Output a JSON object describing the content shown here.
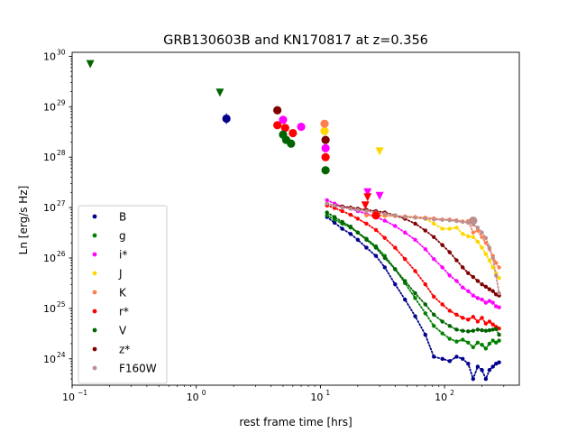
{
  "chart_data": {
    "type": "scatter",
    "title": "GRB130603B and KN170817 at z=0.356",
    "xlabel": "rest frame time [hrs]",
    "ylabel": "Ln [erg/s Hz]",
    "xscale": "log",
    "yscale": "log",
    "xlim": [
      0.1,
      400
    ],
    "ylim": [
      3e+23,
      1.2e+30
    ],
    "x_ticks": [
      {
        "value": 0.1,
        "label": "10",
        "exp": "−1"
      },
      {
        "value": 1,
        "label": "10",
        "exp": "0"
      },
      {
        "value": 10,
        "label": "10",
        "exp": "1"
      },
      {
        "value": 100,
        "label": "10",
        "exp": "2"
      }
    ],
    "y_ticks": [
      {
        "value": 1e+24,
        "label": "10",
        "exp": "24"
      },
      {
        "value": 1e+25,
        "label": "10",
        "exp": "25"
      },
      {
        "value": 1e+26,
        "label": "10",
        "exp": "26"
      },
      {
        "value": 1e+27,
        "label": "10",
        "exp": "27"
      },
      {
        "value": 1e+28,
        "label": "10",
        "exp": "28"
      },
      {
        "value": 1e+29,
        "label": "10",
        "exp": "29"
      },
      {
        "value": 1e+30,
        "label": "10",
        "exp": "30"
      }
    ],
    "grid": false,
    "legend_position": "lower-left",
    "series": [
      {
        "name": "B",
        "color": "#00008b",
        "model": {
          "x": [
            11.3,
            13,
            15,
            17.5,
            20,
            23.5,
            28,
            33,
            40,
            48,
            58,
            70,
            82,
            96,
            110,
            125,
            140,
            155,
            170,
            185,
            200,
            215,
            230,
            245,
            260,
            275
          ],
          "y": [
            6.5e+26,
            5e+26,
            3.8e+26,
            3e+26,
            2.3e+26,
            1.6e+26,
            1.1e+26,
            6.5e+25,
            3e+25,
            1.5e+25,
            7e+24,
            3e+24,
            1.1e+24,
            1e+24,
            9e+23,
            1.1e+24,
            1e+24,
            8e+23,
            4e+23,
            7e+23,
            6e+23,
            4e+23,
            6e+23,
            7e+23,
            8e+23,
            8.5e+23
          ]
        },
        "obs": [
          {
            "x": 1.75,
            "y": 5.8e+28,
            "type": "point",
            "err": 1.8
          }
        ]
      },
      {
        "name": "g",
        "color": "#008000",
        "model": {
          "x": [
            11.3,
            13,
            15,
            17.5,
            20,
            23.5,
            28,
            33,
            40,
            48,
            58,
            70,
            82,
            96,
            110,
            125,
            140,
            155,
            170,
            185,
            200,
            215,
            230,
            245,
            260,
            275
          ],
          "y": [
            7e+26,
            5.8e+26,
            4.8e+26,
            4e+26,
            3.2e+26,
            2.4e+26,
            1.7e+26,
            1.1e+26,
            6e+25,
            3.2e+25,
            1.6e+25,
            8e+24,
            4.5e+24,
            3.2e+24,
            2.5e+24,
            2.2e+24,
            2.4e+24,
            2.1e+24,
            1.7e+24,
            2.1e+24,
            1.9e+24,
            1.6e+24,
            2e+24,
            2.3e+24,
            2.1e+24,
            2.3e+24
          ]
        },
        "obs": []
      },
      {
        "name": "i*",
        "color": "#ff00ff",
        "model": {
          "x": [
            11.3,
            13,
            15,
            17.5,
            20,
            23.5,
            28,
            33,
            40,
            48,
            58,
            70,
            82,
            96,
            110,
            125,
            140,
            155,
            170,
            185,
            200,
            215,
            230,
            245,
            260,
            275
          ],
          "y": [
            1.4e+27,
            1.2e+27,
            1.05e+27,
            9.5e+26,
            8.5e+26,
            7.5e+26,
            6.5e+26,
            5.5e+26,
            4.3e+26,
            3.2e+26,
            2.3e+26,
            1.5e+26,
            9.5e+25,
            6.5e+25,
            4.5e+25,
            3.5e+25,
            2.6e+25,
            2.2e+25,
            1.8e+25,
            1.6e+25,
            1.5e+25,
            1.3e+25,
            1.4e+25,
            1.3e+25,
            1.1e+25,
            1.05e+25
          ]
        },
        "obs": [
          {
            "x": 5.0,
            "y": 5.5e+28,
            "type": "point"
          },
          {
            "x": 7.0,
            "y": 4e+28,
            "type": "point"
          },
          {
            "x": 11.0,
            "y": 1.5e+28,
            "type": "point"
          },
          {
            "x": 24.0,
            "y": 2e+27,
            "type": "upper"
          },
          {
            "x": 30.0,
            "y": 1.7e+27,
            "type": "upper"
          }
        ]
      },
      {
        "name": "J",
        "color": "#ffd700",
        "model": {
          "x": [
            23.5,
            28,
            33,
            40,
            48,
            58,
            70,
            82,
            96,
            110,
            125,
            140,
            155,
            170,
            185,
            200,
            215,
            230,
            245,
            260,
            275
          ],
          "y": [
            7e+26,
            7e+26,
            6.8e+26,
            6.8e+26,
            6.6e+26,
            6.3e+26,
            6e+26,
            4.8e+26,
            3.8e+26,
            3.8e+26,
            4e+26,
            3e+26,
            2.7e+26,
            2.6e+26,
            2.1e+26,
            1.6e+26,
            1.2e+26,
            9e+25,
            6.5e+25,
            5e+25,
            4e+25
          ]
        },
        "obs": [
          {
            "x": 10.8,
            "y": 3.3e+28,
            "type": "point"
          },
          {
            "x": 30.0,
            "y": 1.3e+28,
            "type": "upper"
          }
        ]
      },
      {
        "name": "K",
        "color": "#ff7f50",
        "model": {
          "x": [
            23.5,
            28,
            33,
            40,
            48,
            58,
            70,
            82,
            96,
            110,
            125,
            140,
            155,
            170,
            185,
            200,
            215,
            230,
            245,
            260,
            275
          ],
          "y": [
            7e+26,
            7e+26,
            6.9e+26,
            6.8e+26,
            6.7e+26,
            6.5e+26,
            6.3e+26,
            6.1e+26,
            5.8e+26,
            5.8e+26,
            5.6e+26,
            5.3e+26,
            5.4e+26,
            3.2e+26,
            3.5e+26,
            2.6e+26,
            2e+26,
            1.5e+26,
            1.1e+26,
            8e+25,
            6.5e+25
          ]
        },
        "obs": [
          {
            "x": 10.8,
            "y": 4.6e+28,
            "type": "point"
          }
        ]
      },
      {
        "name": "r*",
        "color": "#ff0000",
        "model": {
          "x": [
            11.3,
            13,
            15,
            17.5,
            20,
            23.5,
            28,
            33,
            40,
            48,
            58,
            70,
            82,
            96,
            110,
            125,
            140,
            155,
            170,
            185,
            200,
            215,
            230,
            245,
            260,
            275
          ],
          "y": [
            1.1e+27,
            9.8e+26,
            8.5e+26,
            7.2e+26,
            6e+26,
            4.8e+26,
            3.6e+26,
            2.5e+26,
            1.6e+26,
            9.5e+25,
            5.5e+25,
            3e+25,
            1.7e+25,
            1.2e+25,
            9e+24,
            7.5e+24,
            6.5e+24,
            6e+24,
            6.8e+24,
            5.5e+24,
            6.5e+24,
            5e+24,
            5.5e+24,
            4.8e+24,
            4.3e+24,
            4e+24
          ]
        },
        "obs": [
          {
            "x": 4.5,
            "y": 4.3e+28,
            "type": "point"
          },
          {
            "x": 5.2,
            "y": 3.8e+28,
            "type": "point"
          },
          {
            "x": 6.0,
            "y": 3e+28,
            "type": "point"
          },
          {
            "x": 11.0,
            "y": 1e+28,
            "type": "point"
          },
          {
            "x": 24.0,
            "y": 1.6e+27,
            "type": "upper"
          },
          {
            "x": 23.0,
            "y": 1.1e+27,
            "type": "upper"
          },
          {
            "x": 28.0,
            "y": 7e+26,
            "type": "point"
          }
        ]
      },
      {
        "name": "V",
        "color": "#006400",
        "model": {
          "x": [
            11.3,
            13,
            15,
            17.5,
            20,
            23.5,
            28,
            33,
            40,
            48,
            58,
            70,
            82,
            96,
            110,
            125,
            140,
            155,
            170,
            185,
            200,
            215,
            230,
            245,
            260,
            275
          ],
          "y": [
            8e+26,
            6.5e+26,
            5.2e+26,
            4.2e+26,
            3.2e+26,
            2.3e+26,
            1.6e+26,
            1e+26,
            6e+25,
            3.5e+25,
            2e+25,
            1.2e+25,
            7.5e+24,
            5.5e+24,
            4.5e+24,
            3.8e+24,
            3.6e+24,
            3.5e+24,
            3.6e+24,
            3.8e+24,
            3.7e+24,
            3.6e+24,
            3.7e+24,
            3.8e+24,
            3.9e+24,
            3e+24
          ]
        },
        "obs": [
          {
            "x": 0.14,
            "y": 7e+29,
            "type": "upper"
          },
          {
            "x": 1.55,
            "y": 1.9e+29,
            "type": "upper"
          },
          {
            "x": 5.0,
            "y": 2.8e+28,
            "type": "point"
          },
          {
            "x": 5.3,
            "y": 2.2e+28,
            "type": "point"
          },
          {
            "x": 5.8,
            "y": 1.85e+28,
            "type": "point"
          },
          {
            "x": 11.0,
            "y": 5.5e+27,
            "type": "point"
          }
        ]
      },
      {
        "name": "z*",
        "color": "#800000",
        "model": {
          "x": [
            11.3,
            13,
            15,
            17.5,
            20,
            23.5,
            28,
            33,
            40,
            48,
            58,
            70,
            82,
            96,
            110,
            125,
            140,
            155,
            170,
            185,
            200,
            215,
            230,
            245,
            260,
            275
          ],
          "y": [
            1.2e+27,
            1.1e+27,
            1.05e+27,
            1e+27,
            9.5e+26,
            9e+26,
            8.5e+26,
            8e+26,
            7e+26,
            6e+26,
            4.8e+26,
            3.5e+26,
            2.6e+26,
            1.8e+26,
            1.3e+26,
            9e+25,
            6.5e+25,
            5e+25,
            4.2e+25,
            3.5e+25,
            3e+25,
            2.7e+25,
            2.4e+25,
            2.2e+25,
            1.9e+25,
            1.8e+25
          ]
        },
        "obs": [
          {
            "x": 4.5,
            "y": 8.5e+28,
            "type": "point"
          },
          {
            "x": 11.0,
            "y": 2.2e+28,
            "type": "point"
          }
        ]
      },
      {
        "name": "F160W",
        "color": "#bc8f8f",
        "model": {
          "x": [
            11.3,
            13,
            15,
            17.5,
            20,
            23.5,
            28,
            33,
            40,
            48,
            58,
            70,
            82,
            96,
            110,
            125,
            140,
            155,
            170,
            185,
            200,
            215,
            230,
            245,
            260,
            275
          ],
          "y": [
            1.2e+27,
            1.1e+27,
            1e+27,
            9.5e+26,
            9e+26,
            8.5e+26,
            8e+26,
            7.5e+26,
            7e+26,
            6.5e+26,
            6.3e+26,
            6e+26,
            5.8e+26,
            5.7e+26,
            5.6e+26,
            5.4e+26,
            5.2e+26,
            5e+26,
            4.6e+26,
            4e+26,
            3.2e+26,
            2.5e+26,
            1.6e+26,
            1e+26,
            4.5e+25,
            2e+25
          ]
        },
        "obs": [
          {
            "x": 170.0,
            "y": 5.5e+26,
            "type": "point"
          }
        ]
      }
    ]
  }
}
